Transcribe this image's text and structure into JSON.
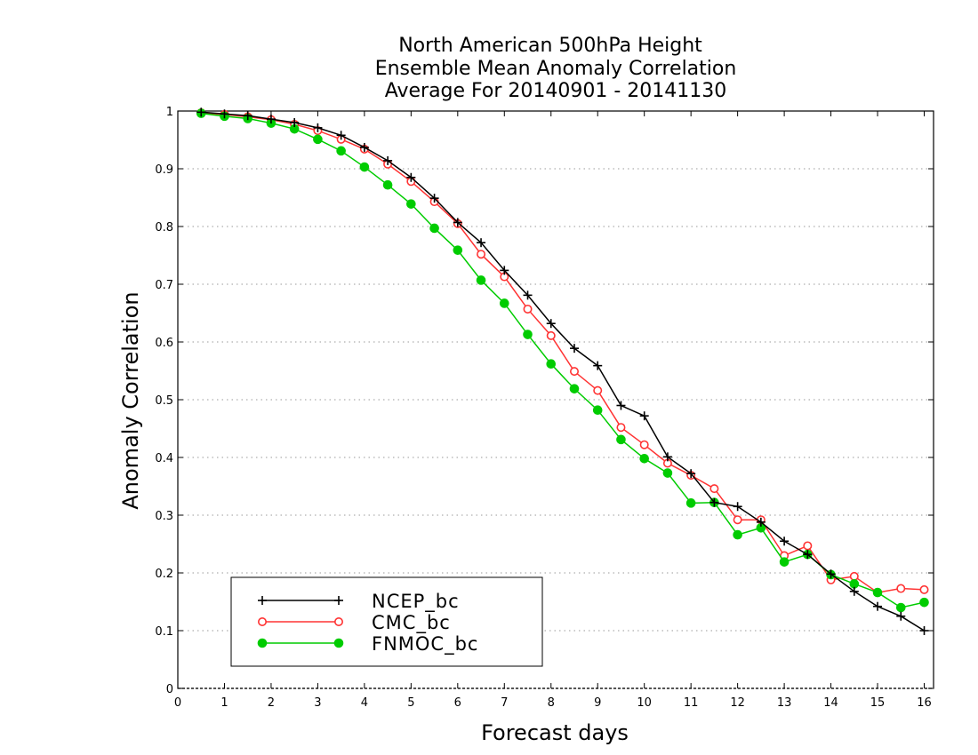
{
  "chart_data": {
    "type": "line",
    "title": [
      "North American 500hPa Height",
      "Ensemble Mean Anomaly Correlation",
      "Average For 20140901 - 20141130"
    ],
    "xlabel": "Forecast days",
    "ylabel": "Anomaly Correlation",
    "xlim": [
      0,
      16.2
    ],
    "ylim": [
      0,
      1
    ],
    "xticks": [
      0,
      1,
      2,
      3,
      4,
      5,
      6,
      7,
      8,
      9,
      10,
      11,
      12,
      13,
      14,
      15,
      16
    ],
    "xtick_labels": [
      "0",
      "1",
      "2",
      "3",
      "4",
      "5",
      "6",
      "7",
      "8",
      "9",
      "10",
      "11",
      "12",
      "13",
      "14",
      "15",
      "16"
    ],
    "yticks": [
      0,
      0.1,
      0.2,
      0.3,
      0.4,
      0.5,
      0.6,
      0.7,
      0.8,
      0.9,
      1
    ],
    "ytick_labels": [
      "0",
      "0.1",
      "0.2",
      "0.3",
      "0.4",
      "0.5",
      "0.6",
      "0.7",
      "0.8",
      "0.9",
      "1"
    ],
    "grid": "horizontal dotted",
    "legend_position": "bottom-left",
    "x": [
      0.5,
      1,
      1.5,
      2,
      2.5,
      3,
      3.5,
      4,
      4.5,
      5,
      5.5,
      6,
      6.5,
      7,
      7.5,
      8,
      8.5,
      9,
      9.5,
      10,
      10.5,
      11,
      11.5,
      12,
      12.5,
      13,
      13.5,
      14,
      14.5,
      15,
      15.5,
      16
    ],
    "series": [
      {
        "name": "NCEP_bc",
        "color": "#000000",
        "marker": "plus",
        "values": [
          0.998,
          0.995,
          0.992,
          0.986,
          0.98,
          0.971,
          0.958,
          0.937,
          0.914,
          0.885,
          0.849,
          0.807,
          0.772,
          0.724,
          0.681,
          0.632,
          0.589,
          0.559,
          0.49,
          0.472,
          0.401,
          0.372,
          0.322,
          0.315,
          0.288,
          0.255,
          0.232,
          0.198,
          0.168,
          0.142,
          0.125,
          0.1
        ]
      },
      {
        "name": "CMC_bc",
        "color": "#ff3333",
        "marker": "open-circle",
        "values": [
          0.997,
          0.994,
          0.99,
          0.985,
          0.977,
          0.966,
          0.951,
          0.934,
          0.908,
          0.878,
          0.843,
          0.805,
          0.752,
          0.713,
          0.657,
          0.611,
          0.549,
          0.516,
          0.452,
          0.422,
          0.39,
          0.369,
          0.346,
          0.292,
          0.292,
          0.23,
          0.247,
          0.188,
          0.194,
          0.166,
          0.173,
          0.171
        ]
      },
      {
        "name": "FNMOC_bc",
        "color": "#00cc00",
        "marker": "filled-circle",
        "values": [
          0.996,
          0.991,
          0.987,
          0.979,
          0.969,
          0.951,
          0.931,
          0.903,
          0.872,
          0.839,
          0.797,
          0.759,
          0.707,
          0.667,
          0.613,
          0.562,
          0.519,
          0.482,
          0.431,
          0.398,
          0.373,
          0.321,
          0.322,
          0.266,
          0.278,
          0.219,
          0.232,
          0.197,
          0.181,
          0.166,
          0.14,
          0.149
        ]
      }
    ]
  }
}
